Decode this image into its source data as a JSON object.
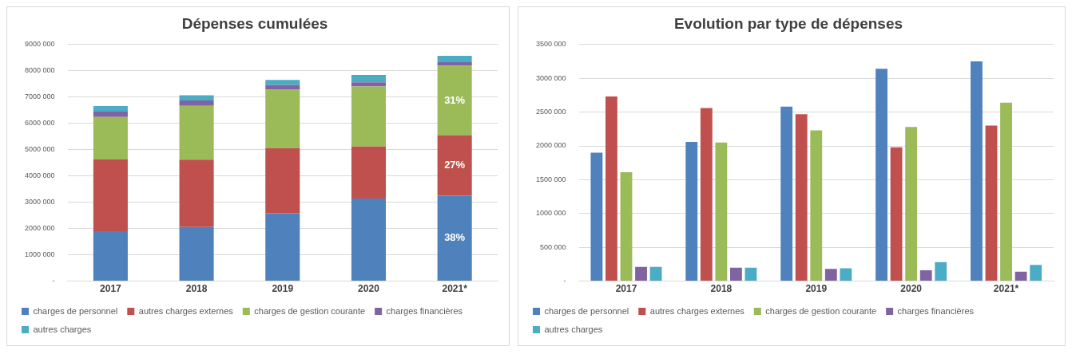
{
  "chart_data": [
    {
      "type": "bar",
      "title": "Dépenses cumulées",
      "stacked": true,
      "categories": [
        "2017",
        "2018",
        "2019",
        "2020",
        "2021*"
      ],
      "series": [
        {
          "name": "charges de personnel",
          "color": "#4f81bd",
          "values": [
            1900000,
            2060000,
            2580000,
            3140000,
            3250000
          ]
        },
        {
          "name": "autres charges externes",
          "color": "#c0504d",
          "values": [
            2730000,
            2560000,
            2470000,
            1980000,
            2300000
          ]
        },
        {
          "name": "charges de gestion courante",
          "color": "#9bbb59",
          "values": [
            1610000,
            2050000,
            2230000,
            2280000,
            2640000
          ]
        },
        {
          "name": "charges financières",
          "color": "#8064a2",
          "values": [
            210000,
            200000,
            180000,
            160000,
            140000
          ]
        },
        {
          "name": "autres charges",
          "color": "#4bacc6",
          "values": [
            210000,
            200000,
            190000,
            280000,
            240000
          ]
        }
      ],
      "ylim": [
        0,
        9000000
      ],
      "yticks": [
        {
          "value": 0,
          "label": "-"
        },
        {
          "value": 1000000,
          "label": "1000 000"
        },
        {
          "value": 2000000,
          "label": "2000 000"
        },
        {
          "value": 3000000,
          "label": "3000 000"
        },
        {
          "value": 4000000,
          "label": "4000 000"
        },
        {
          "value": 5000000,
          "label": "5000 000"
        },
        {
          "value": 6000000,
          "label": "6000 000"
        },
        {
          "value": 7000000,
          "label": "7000 000"
        },
        {
          "value": 8000000,
          "label": "8000 000"
        },
        {
          "value": 9000000,
          "label": "9000 000"
        }
      ],
      "annotations": [
        "38%",
        "27%",
        "31%"
      ],
      "grid": "y",
      "legend": "bottom"
    },
    {
      "type": "bar",
      "title": "Evolution par type de dépenses",
      "categories": [
        "2017",
        "2018",
        "2019",
        "2020",
        "2021*"
      ],
      "series": [
        {
          "name": "charges de personnel",
          "color": "#4f81bd",
          "values": [
            1900000,
            2060000,
            2580000,
            3140000,
            3250000
          ]
        },
        {
          "name": "autres charges externes",
          "color": "#c0504d",
          "values": [
            2730000,
            2560000,
            2470000,
            1980000,
            2300000
          ]
        },
        {
          "name": "charges de gestion courante",
          "color": "#9bbb59",
          "values": [
            1610000,
            2050000,
            2230000,
            2280000,
            2640000
          ]
        },
        {
          "name": "charges financières",
          "color": "#8064a2",
          "values": [
            210000,
            200000,
            180000,
            160000,
            140000
          ]
        },
        {
          "name": "autres charges",
          "color": "#4bacc6",
          "values": [
            210000,
            200000,
            190000,
            280000,
            240000
          ]
        }
      ],
      "ylim": [
        0,
        3500000
      ],
      "yticks": [
        {
          "value": 0,
          "label": "-"
        },
        {
          "value": 500000,
          "label": "500 000"
        },
        {
          "value": 1000000,
          "label": "1000 000"
        },
        {
          "value": 1500000,
          "label": "1500 000"
        },
        {
          "value": 2000000,
          "label": "2000 000"
        },
        {
          "value": 2500000,
          "label": "2500 000"
        },
        {
          "value": 3000000,
          "label": "3000 000"
        },
        {
          "value": 3500000,
          "label": "3500 000"
        }
      ],
      "grid": "y",
      "legend": "bottom"
    }
  ]
}
